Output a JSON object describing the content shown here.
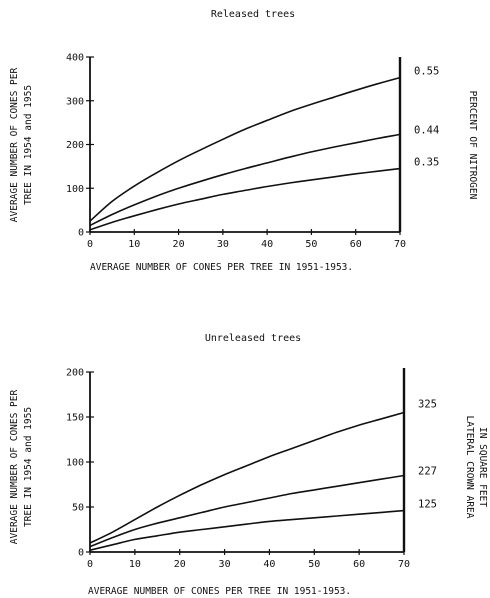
{
  "chart_data": [
    {
      "type": "line",
      "title": "Released trees",
      "xlabel": "AVERAGE NUMBER OF CONES PER TREE IN 1951-1953.",
      "ylabel_line1": "AVERAGE NUMBER OF CONES PER",
      "ylabel_line2": "TREE IN 1954 and 1955",
      "right_label": "PERCENT OF NITROGEN",
      "xlim": [
        0,
        70
      ],
      "ylim": [
        0,
        400
      ],
      "xticks": [
        "0",
        "10",
        "20",
        "30",
        "40",
        "50",
        "60",
        "70"
      ],
      "yticks": [
        "0",
        "100",
        "200",
        "300",
        "400"
      ],
      "x": [
        0,
        5,
        10,
        15,
        20,
        25,
        30,
        35,
        40,
        45,
        50,
        55,
        60,
        65,
        70
      ],
      "series": [
        {
          "name": "0.55",
          "values": [
            25,
            70,
            105,
            135,
            163,
            188,
            212,
            235,
            255,
            275,
            292,
            308,
            324,
            339,
            353
          ]
        },
        {
          "name": "0.44",
          "values": [
            15,
            40,
            62,
            82,
            100,
            116,
            131,
            145,
            158,
            171,
            183,
            194,
            204,
            214,
            223
          ]
        },
        {
          "name": "0.35",
          "values": [
            5,
            22,
            37,
            51,
            64,
            75,
            86,
            95,
            104,
            112,
            119,
            126,
            133,
            139,
            145
          ]
        }
      ]
    },
    {
      "type": "line",
      "title": "Unreleased trees",
      "xlabel": "AVERAGE NUMBER OF CONES PER TREE IN 1951-1953.",
      "ylabel_line1": "AVERAGE NUMBER OF CONES PER",
      "ylabel_line2": "TREE IN 1954 and 1955",
      "right_label_line1": "LATERAL CROWN AREA",
      "right_label_line2": "IN SQUARE FEET",
      "xlim": [
        0,
        70
      ],
      "ylim": [
        0,
        200
      ],
      "xticks": [
        "0",
        "10",
        "20",
        "30",
        "40",
        "50",
        "60",
        "70"
      ],
      "yticks": [
        "0",
        "50",
        "100",
        "150",
        "200"
      ],
      "x": [
        0,
        5,
        10,
        15,
        20,
        25,
        30,
        35,
        40,
        45,
        50,
        55,
        60,
        65,
        70
      ],
      "series": [
        {
          "name": "325",
          "values": [
            10,
            22,
            36,
            50,
            63,
            75,
            86,
            96,
            106,
            115,
            124,
            133,
            141,
            148,
            155
          ]
        },
        {
          "name": "227",
          "values": [
            6,
            16,
            25,
            32,
            38,
            44,
            50,
            55,
            60,
            65,
            69,
            73,
            77,
            81,
            85
          ]
        },
        {
          "name": "125",
          "values": [
            2,
            8,
            14,
            18,
            22,
            25,
            28,
            31,
            34,
            36,
            38,
            40,
            42,
            44,
            46
          ]
        }
      ]
    }
  ]
}
